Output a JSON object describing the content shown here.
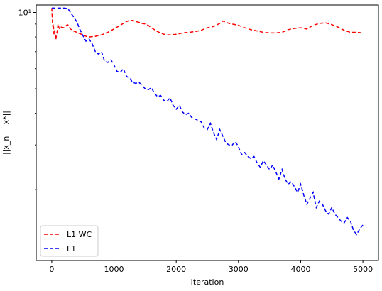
{
  "chart_data": {
    "type": "line",
    "title": "",
    "xlabel": "Iteration",
    "ylabel": "||x_n − x*||",
    "yscale": "log",
    "xlim": [
      -250,
      5250
    ],
    "ylim": [
      1.05,
      10.7
    ],
    "xticks": [
      0,
      1000,
      2000,
      3000,
      4000,
      5000
    ],
    "xtick_labels": [
      "0",
      "1000",
      "2000",
      "3000",
      "4000",
      "5000"
    ],
    "yticks": [
      10
    ],
    "ytick_labels": [
      "10¹"
    ],
    "grid": false,
    "legend_position": "lower-left",
    "series": [
      {
        "name": "L1 WC",
        "color": "#ff0000",
        "style": "dashed",
        "x": [
          0,
          15,
          25,
          35,
          45,
          55,
          65,
          75,
          90,
          100,
          115,
          130,
          150,
          200,
          250,
          280,
          300,
          350,
          400,
          450,
          500,
          550,
          600,
          700,
          800,
          900,
          1000,
          1100,
          1200,
          1250,
          1300,
          1350,
          1400,
          1450,
          1500,
          1550,
          1600,
          1700,
          1800,
          1900,
          2000,
          2100,
          2200,
          2300,
          2400,
          2500,
          2600,
          2700,
          2750,
          2800,
          2850,
          2900,
          3000,
          3100,
          3200,
          3300,
          3400,
          3500,
          3600,
          3700,
          3800,
          3900,
          4000,
          4100,
          4200,
          4300,
          4400,
          4500,
          4600,
          4700,
          4800,
          4900,
          5000
        ],
        "y": [
          10.4,
          8.8,
          9.0,
          8.2,
          8.5,
          8.3,
          7.8,
          8.1,
          8.5,
          9.0,
          8.7,
          8.6,
          8.75,
          8.7,
          8.95,
          8.85,
          8.6,
          8.45,
          8.35,
          8.25,
          8.15,
          8.05,
          8.0,
          8.05,
          8.15,
          8.35,
          8.6,
          8.9,
          9.2,
          9.3,
          9.3,
          9.2,
          9.15,
          9.05,
          9.0,
          8.9,
          8.7,
          8.4,
          8.2,
          8.15,
          8.2,
          8.3,
          8.35,
          8.4,
          8.5,
          8.7,
          8.8,
          9.05,
          9.25,
          9.15,
          9.05,
          9.0,
          8.9,
          8.7,
          8.55,
          8.45,
          8.35,
          8.3,
          8.3,
          8.35,
          8.55,
          8.65,
          8.7,
          8.6,
          8.9,
          9.05,
          9.1,
          8.95,
          8.75,
          8.5,
          8.35,
          8.35,
          8.3
        ]
      },
      {
        "name": "L1",
        "color": "#0000ff",
        "style": "dashed",
        "x": [
          0,
          100,
          200,
          260,
          300,
          350,
          400,
          450,
          500,
          550,
          600,
          650,
          700,
          750,
          800,
          850,
          900,
          950,
          1000,
          1050,
          1100,
          1150,
          1200,
          1250,
          1300,
          1350,
          1400,
          1450,
          1500,
          1550,
          1600,
          1650,
          1700,
          1750,
          1800,
          1850,
          1900,
          1950,
          2000,
          2050,
          2100,
          2150,
          2200,
          2250,
          2300,
          2350,
          2400,
          2450,
          2500,
          2550,
          2600,
          2650,
          2700,
          2750,
          2800,
          2850,
          2900,
          2950,
          3000,
          3050,
          3100,
          3150,
          3200,
          3250,
          3300,
          3350,
          3400,
          3450,
          3500,
          3550,
          3600,
          3650,
          3700,
          3750,
          3800,
          3850,
          3900,
          3950,
          4000,
          4050,
          4100,
          4150,
          4200,
          4250,
          4300,
          4350,
          4400,
          4450,
          4500,
          4550,
          4600,
          4650,
          4700,
          4750,
          4800,
          4850,
          4900,
          4950,
          5000
        ],
        "y": [
          10.4,
          10.4,
          10.4,
          10.35,
          10.0,
          9.6,
          9.2,
          8.6,
          8.1,
          7.7,
          7.85,
          7.5,
          7.0,
          6.85,
          7.0,
          6.4,
          6.35,
          6.5,
          6.2,
          5.85,
          5.8,
          6.0,
          5.6,
          5.5,
          5.3,
          5.25,
          5.3,
          5.15,
          5.0,
          4.95,
          5.05,
          4.8,
          4.65,
          4.7,
          4.5,
          4.45,
          4.6,
          4.3,
          4.15,
          4.3,
          4.05,
          3.95,
          4.0,
          3.85,
          3.8,
          3.75,
          3.7,
          3.5,
          3.45,
          3.65,
          3.35,
          3.15,
          3.45,
          3.25,
          3.05,
          3.0,
          3.0,
          3.1,
          2.95,
          2.75,
          2.8,
          2.7,
          2.65,
          2.7,
          2.55,
          2.45,
          2.6,
          2.5,
          2.4,
          2.5,
          2.35,
          2.2,
          2.4,
          2.2,
          2.1,
          2.15,
          2.05,
          1.95,
          2.1,
          1.9,
          1.75,
          1.85,
          1.95,
          1.7,
          1.8,
          1.75,
          1.65,
          1.6,
          1.7,
          1.6,
          1.55,
          1.5,
          1.48,
          1.55,
          1.5,
          1.38,
          1.33,
          1.4,
          1.45
        ]
      }
    ]
  }
}
